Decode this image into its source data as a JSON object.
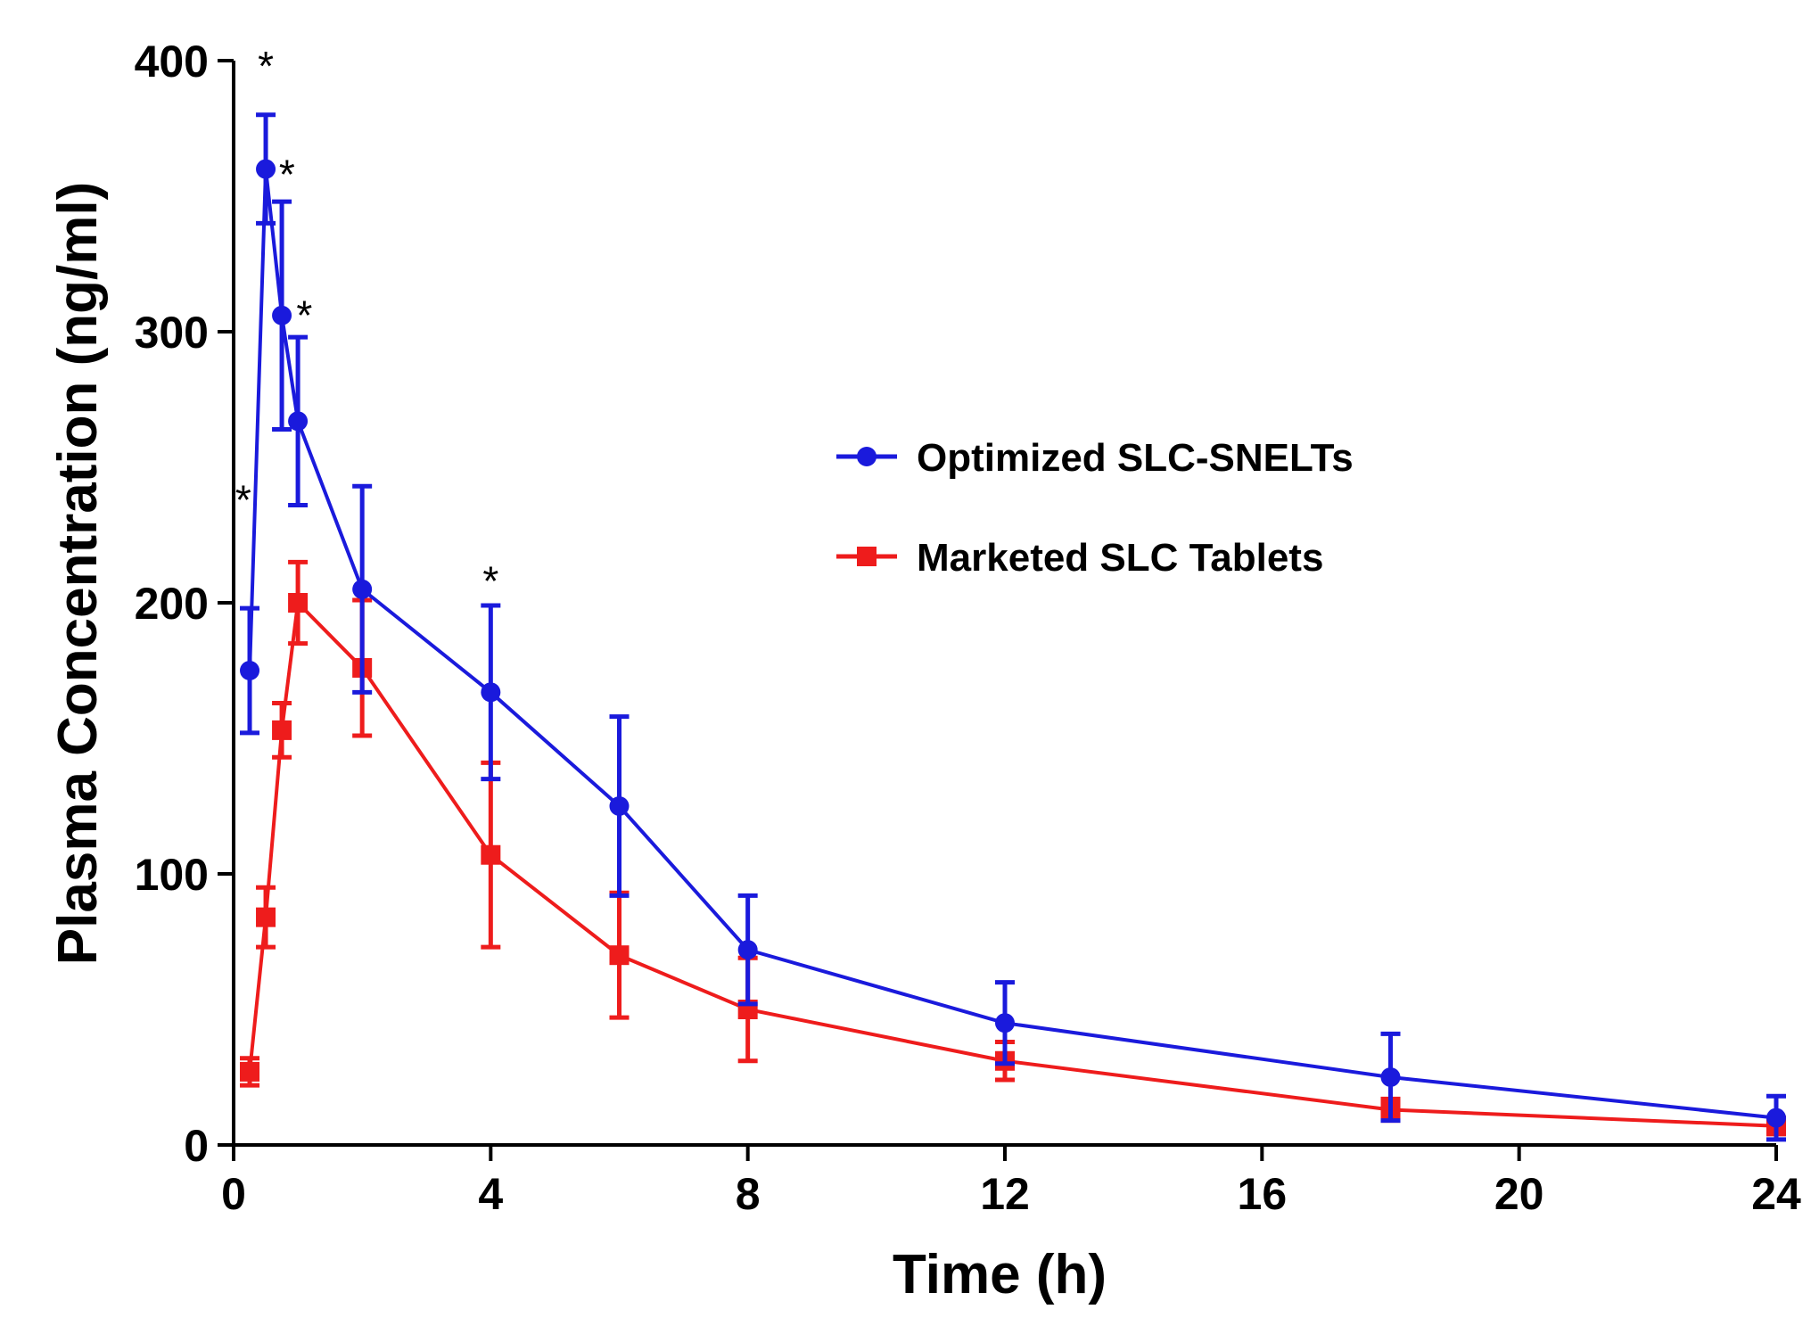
{
  "chart_data": {
    "type": "line",
    "title": "",
    "xlabel": "Time (h)",
    "ylabel": "Plasma Concentration (ng/ml)",
    "xlim": [
      0,
      24
    ],
    "ylim": [
      0,
      400
    ],
    "xticks": [
      0,
      4,
      8,
      12,
      16,
      20,
      24
    ],
    "yticks": [
      0,
      100,
      200,
      300,
      400
    ],
    "legend_position": "center-right",
    "series": [
      {
        "name": "Optimized SLC-SNELTs",
        "color": "#1a1adc",
        "marker": "circle",
        "x": [
          0.25,
          0.5,
          0.75,
          1,
          2,
          4,
          6,
          8,
          12,
          18,
          24
        ],
        "values": [
          175,
          360,
          306,
          267,
          205,
          167,
          125,
          72,
          45,
          25,
          10
        ],
        "error": [
          23,
          20,
          42,
          31,
          38,
          32,
          33,
          20,
          15,
          16,
          8
        ]
      },
      {
        "name": "Marketed SLC Tablets",
        "color": "#ee1c1c",
        "marker": "square",
        "x": [
          0.25,
          0.5,
          0.75,
          1,
          2,
          4,
          6,
          8,
          12,
          18,
          24
        ],
        "values": [
          27,
          84,
          153,
          200,
          176,
          107,
          70,
          50,
          31,
          13,
          7
        ],
        "error": [
          5,
          11,
          10,
          15,
          25,
          34,
          23,
          19,
          7,
          4,
          3
        ]
      }
    ],
    "annotations": [
      {
        "text": "*",
        "x": 0.15,
        "y": 240
      },
      {
        "text": "*",
        "x": 0.5,
        "y": 400
      },
      {
        "text": "*",
        "x": 0.83,
        "y": 360
      },
      {
        "text": "*",
        "x": 1.1,
        "y": 308
      },
      {
        "text": "*",
        "x": 4,
        "y": 210
      }
    ]
  }
}
